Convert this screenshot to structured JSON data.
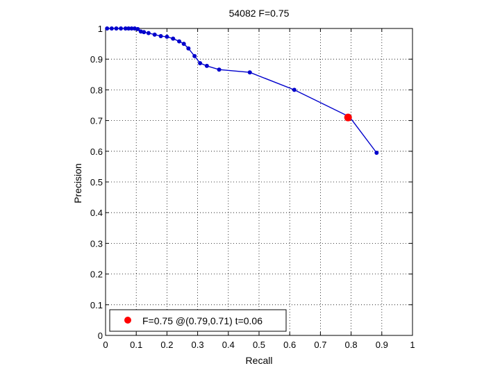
{
  "chart_data": {
    "type": "line",
    "title": "54082 F=0.75",
    "xlabel": "Recall",
    "ylabel": "Precision",
    "xlim": [
      0,
      1
    ],
    "ylim": [
      0,
      1
    ],
    "grid": true,
    "xticks": [
      0,
      0.1,
      0.2,
      0.3,
      0.4,
      0.5,
      0.6,
      0.7,
      0.8,
      0.9,
      1
    ],
    "yticks": [
      0,
      0.1,
      0.2,
      0.3,
      0.4,
      0.5,
      0.6,
      0.7,
      0.8,
      0.9,
      1
    ],
    "xtick_labels": [
      "0",
      "0.1",
      "0.2",
      "0.3",
      "0.4",
      "0.5",
      "0.6",
      "0.7",
      "0.8",
      "0.9",
      "1"
    ],
    "ytick_labels": [
      "0",
      "0.1",
      "0.2",
      "0.3",
      "0.4",
      "0.5",
      "0.6",
      "0.7",
      "0.8",
      "0.9",
      "1"
    ],
    "series": [
      {
        "color": "#0000cc",
        "x": [
          0.005,
          0.02,
          0.035,
          0.05,
          0.065,
          0.075,
          0.085,
          0.095,
          0.105,
          0.115,
          0.125,
          0.14,
          0.16,
          0.18,
          0.2,
          0.22,
          0.24,
          0.255,
          0.27,
          0.29,
          0.308,
          0.33,
          0.37,
          0.47,
          0.615,
          0.795,
          0.883
        ],
        "y": [
          1.0,
          1.0,
          1.0,
          1.0,
          1.0,
          1.0,
          1.0,
          1.0,
          0.998,
          0.99,
          0.988,
          0.985,
          0.98,
          0.975,
          0.973,
          0.967,
          0.958,
          0.95,
          0.935,
          0.91,
          0.887,
          0.878,
          0.866,
          0.857,
          0.8,
          0.712,
          0.595
        ]
      }
    ],
    "highlight": {
      "x": 0.79,
      "y": 0.71,
      "color": "#ff0000"
    },
    "legend": {
      "position": "bottom-left",
      "text": "F=0.75 @(0.79,0.71) t=0.06",
      "marker_color": "#ff0000"
    }
  }
}
